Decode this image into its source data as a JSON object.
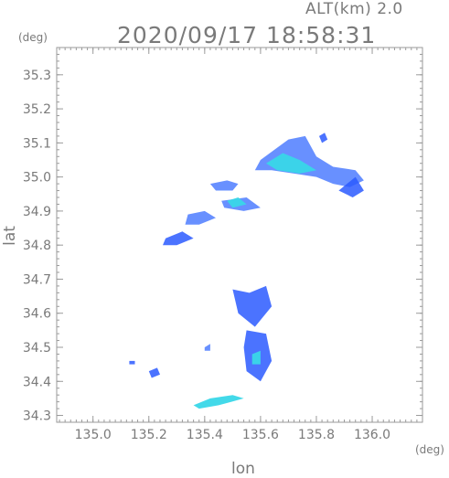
{
  "header": {
    "altitude_label": "ALT(km)  2.0",
    "timestamp": "2020/09/17  18:58:31"
  },
  "colors": {
    "axis": "#9a9a9a",
    "text": "#7a7a7a",
    "echo_weak": "#2b5bff",
    "echo_medium": "#4d7dff",
    "echo_strong": "#39d7e8"
  },
  "chart_data": {
    "type": "heatmap",
    "title": "2020/09/17  18:58:31",
    "subtitle": "ALT(km)  2.0",
    "xlabel": "lon",
    "ylabel": "lat",
    "xunit": "(deg)",
    "yunit": "(deg)",
    "xlim": [
      134.87,
      136.18
    ],
    "ylim": [
      34.28,
      35.38
    ],
    "x_ticks": [
      {
        "value": 135.0,
        "label": "135.0"
      },
      {
        "value": 135.2,
        "label": "135.2"
      },
      {
        "value": 135.4,
        "label": "135.4"
      },
      {
        "value": 135.6,
        "label": "135.6"
      },
      {
        "value": 135.8,
        "label": "135.8"
      },
      {
        "value": 136.0,
        "label": "136.0"
      }
    ],
    "y_ticks": [
      {
        "value": 34.3,
        "label": "34.3"
      },
      {
        "value": 34.4,
        "label": "34.4"
      },
      {
        "value": 34.5,
        "label": "34.5"
      },
      {
        "value": 34.6,
        "label": "34.6"
      },
      {
        "value": 34.7,
        "label": "34.7"
      },
      {
        "value": 34.8,
        "label": "34.8"
      },
      {
        "value": 34.9,
        "label": "34.9"
      },
      {
        "value": 35.0,
        "label": "35.0"
      },
      {
        "value": 35.1,
        "label": "35.1"
      },
      {
        "value": 35.2,
        "label": "35.2"
      },
      {
        "value": 35.3,
        "label": "35.3"
      }
    ],
    "grid": false,
    "echo_regions": [
      {
        "name": "northeast-band",
        "level": "medium",
        "points": [
          [
            135.6,
            35.05
          ],
          [
            135.65,
            35.08
          ],
          [
            135.7,
            35.11
          ],
          [
            135.76,
            35.12
          ],
          [
            135.8,
            35.06
          ],
          [
            135.86,
            35.03
          ],
          [
            135.94,
            35.02
          ],
          [
            135.97,
            34.99
          ],
          [
            135.92,
            34.97
          ],
          [
            135.86,
            34.98
          ],
          [
            135.8,
            35.0
          ],
          [
            135.72,
            35.01
          ],
          [
            135.64,
            35.02
          ],
          [
            135.58,
            35.02
          ]
        ]
      },
      {
        "name": "northeast-core",
        "level": "strong",
        "points": [
          [
            135.62,
            35.04
          ],
          [
            135.68,
            35.07
          ],
          [
            135.74,
            35.05
          ],
          [
            135.8,
            35.02
          ],
          [
            135.74,
            35.01
          ],
          [
            135.66,
            35.02
          ]
        ]
      },
      {
        "name": "east-tip",
        "level": "weak",
        "points": [
          [
            135.88,
            34.96
          ],
          [
            135.94,
            35.0
          ],
          [
            135.97,
            34.96
          ],
          [
            135.93,
            34.94
          ]
        ]
      },
      {
        "name": "northeast-spot",
        "level": "weak",
        "points": [
          [
            135.81,
            35.12
          ],
          [
            135.83,
            35.13
          ],
          [
            135.84,
            35.11
          ],
          [
            135.82,
            35.1
          ]
        ]
      },
      {
        "name": "mid-band-1",
        "level": "medium",
        "points": [
          [
            135.42,
            34.98
          ],
          [
            135.48,
            34.99
          ],
          [
            135.52,
            34.98
          ],
          [
            135.5,
            34.96
          ],
          [
            135.44,
            34.96
          ]
        ]
      },
      {
        "name": "mid-band-2",
        "level": "medium",
        "points": [
          [
            135.46,
            34.93
          ],
          [
            135.55,
            34.94
          ],
          [
            135.6,
            34.91
          ],
          [
            135.54,
            34.9
          ],
          [
            135.47,
            34.91
          ]
        ]
      },
      {
        "name": "mid-band-core",
        "level": "strong",
        "points": [
          [
            135.48,
            34.93
          ],
          [
            135.52,
            34.94
          ],
          [
            135.55,
            34.92
          ],
          [
            135.5,
            34.91
          ]
        ]
      },
      {
        "name": "west-band",
        "level": "medium",
        "points": [
          [
            135.34,
            34.89
          ],
          [
            135.4,
            34.9
          ],
          [
            135.44,
            34.88
          ],
          [
            135.38,
            34.86
          ],
          [
            135.33,
            34.86
          ]
        ]
      },
      {
        "name": "west-band-2",
        "level": "weak",
        "points": [
          [
            135.26,
            34.82
          ],
          [
            135.32,
            34.84
          ],
          [
            135.36,
            34.82
          ],
          [
            135.3,
            34.8
          ],
          [
            135.25,
            34.8
          ]
        ]
      },
      {
        "name": "south-cluster-upper",
        "level": "weak",
        "points": [
          [
            135.5,
            34.67
          ],
          [
            135.56,
            34.66
          ],
          [
            135.62,
            34.68
          ],
          [
            135.64,
            34.62
          ],
          [
            135.58,
            34.56
          ],
          [
            135.52,
            34.6
          ]
        ]
      },
      {
        "name": "south-cluster-lower",
        "level": "weak",
        "points": [
          [
            135.55,
            34.55
          ],
          [
            135.62,
            34.54
          ],
          [
            135.64,
            34.46
          ],
          [
            135.6,
            34.4
          ],
          [
            135.55,
            34.43
          ],
          [
            135.54,
            34.5
          ]
        ]
      },
      {
        "name": "south-core",
        "level": "strong",
        "points": [
          [
            135.57,
            34.48
          ],
          [
            135.6,
            34.49
          ],
          [
            135.6,
            34.45
          ],
          [
            135.57,
            34.45
          ]
        ]
      },
      {
        "name": "southwest-line",
        "level": "strong",
        "points": [
          [
            135.36,
            34.33
          ],
          [
            135.42,
            34.35
          ],
          [
            135.5,
            34.36
          ],
          [
            135.54,
            34.35
          ],
          [
            135.45,
            34.33
          ],
          [
            135.38,
            34.32
          ]
        ]
      },
      {
        "name": "isolated-1",
        "level": "weak",
        "points": [
          [
            135.2,
            34.43
          ],
          [
            135.23,
            34.44
          ],
          [
            135.24,
            34.42
          ],
          [
            135.21,
            34.41
          ]
        ]
      },
      {
        "name": "isolated-2",
        "level": "weak",
        "points": [
          [
            135.13,
            34.46
          ],
          [
            135.15,
            34.46
          ],
          [
            135.15,
            34.45
          ],
          [
            135.13,
            34.45
          ]
        ]
      },
      {
        "name": "isolated-3",
        "level": "medium",
        "points": [
          [
            135.4,
            34.5
          ],
          [
            135.42,
            34.51
          ],
          [
            135.42,
            34.49
          ],
          [
            135.4,
            34.49
          ]
        ]
      }
    ]
  }
}
